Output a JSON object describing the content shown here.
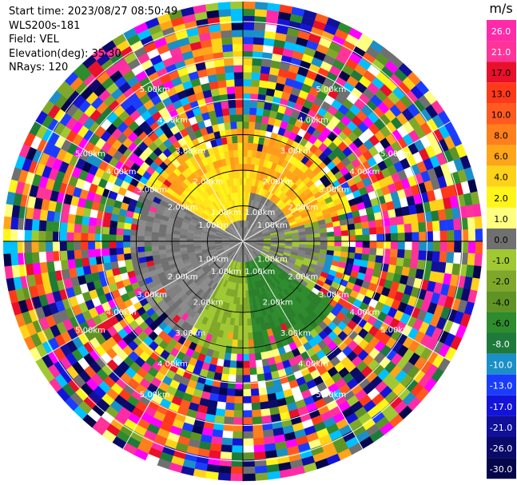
{
  "info": {
    "start_time": "Start time: 2023/08/27 08:50:49",
    "instrument": "WLS200s-181",
    "field": "Field: VEL",
    "elevation": "Elevation(deg): 35.30",
    "nrays": "NRays: 120"
  },
  "ring_labels": [
    "1.00km",
    "2.00km",
    "3.00km",
    "4.00km",
    "5.00km"
  ],
  "colorbar": {
    "unit": "m/s",
    "ticks": [
      "26.0",
      "21.0",
      "17.0",
      "13.0",
      "10.0",
      "8.0",
      "6.0",
      "4.0",
      "2.0",
      "1.0",
      "0.0",
      "-1.0",
      "-2.0",
      "-4.0",
      "-6.0",
      "-8.0",
      "-10.0",
      "-13.0",
      "-17.0",
      "-21.0",
      "-26.0",
      "-30.0"
    ],
    "colors": [
      "#ff2aa8",
      "#ff3399",
      "#e8102a",
      "#ff3a1a",
      "#ff5a1f",
      "#ff7f1c",
      "#ffa51a",
      "#ffd21a",
      "#fff51a",
      "#ffff80",
      "#707070",
      "#a0c832",
      "#7fa82a",
      "#5f9425",
      "#2e8b2e",
      "#1e7a3a",
      "#1a8fc8",
      "#1a3cff",
      "#1414d8",
      "#10109a",
      "#0a0a6a",
      "#05054a"
    ]
  }
}
